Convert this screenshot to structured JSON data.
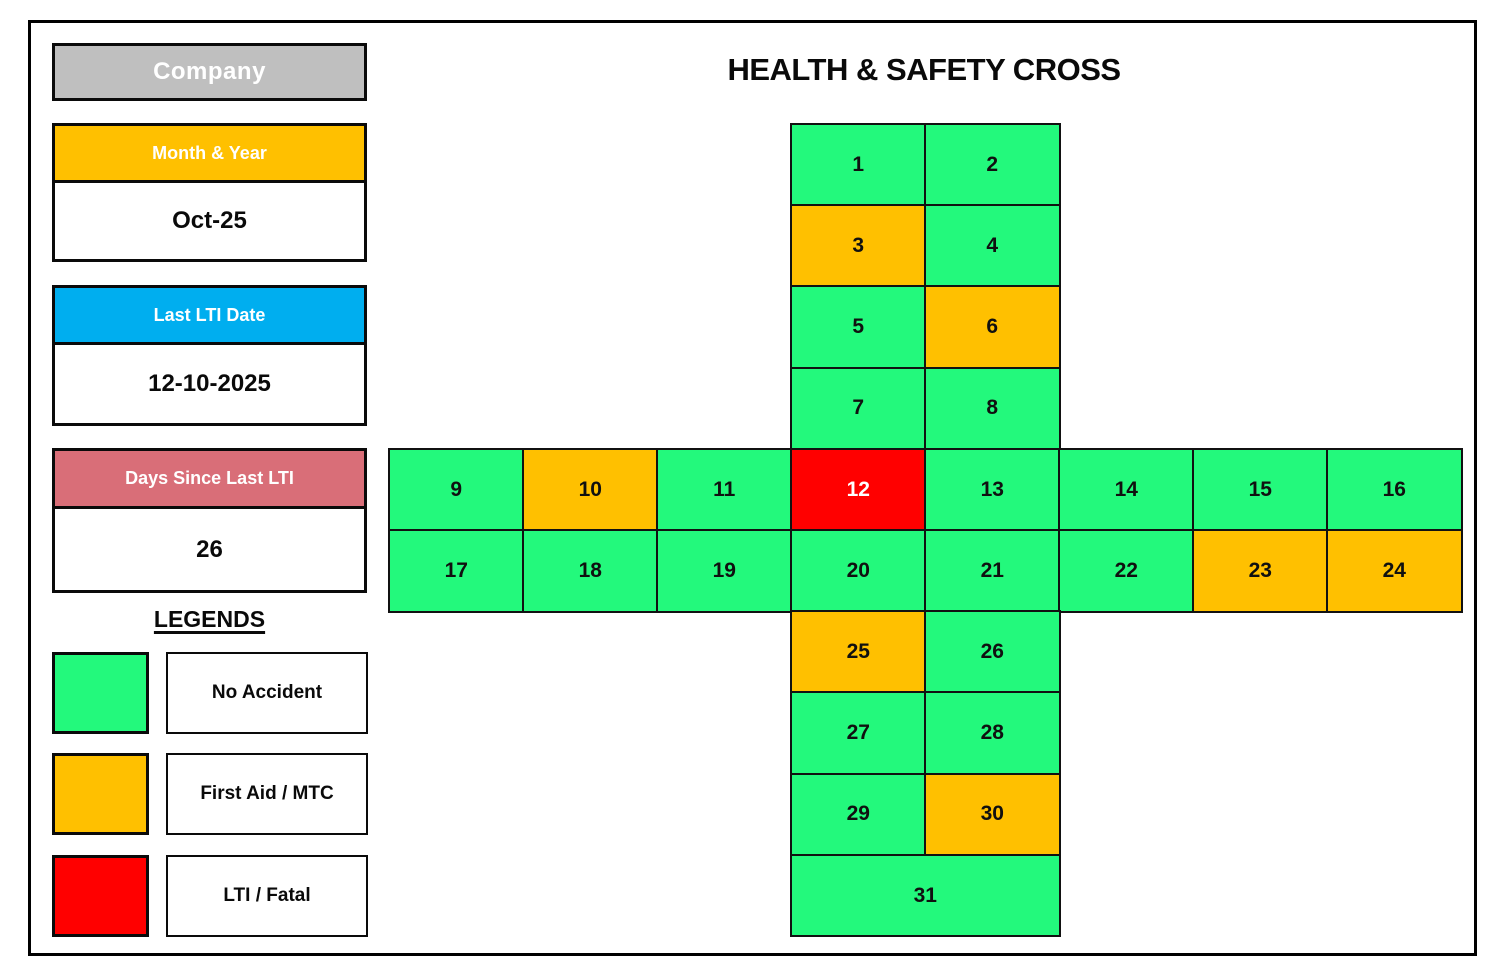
{
  "page": {
    "title": "HEALTH & SAFETY CROSS"
  },
  "company": {
    "label": "Company",
    "bg": "#BFBFBF"
  },
  "info_cards": [
    {
      "id": "month-year",
      "label": "Month & Year",
      "value": "Oct-25",
      "header_bg": "#FFC000"
    },
    {
      "id": "last-lti-date",
      "label": "Last LTI Date",
      "value": "12-10-2025",
      "header_bg": "#00AEEF"
    },
    {
      "id": "days-since-last-lti",
      "label": "Days Since Last LTI",
      "value": "26",
      "header_bg": "#D96E78"
    }
  ],
  "legends": {
    "title": "LEGENDS",
    "items": [
      {
        "status": "no_accident",
        "label": "No Accident",
        "color": "#23F97C"
      },
      {
        "status": "first_aid_mtc",
        "label": "First Aid / MTC",
        "color": "#FFC000"
      },
      {
        "status": "lti_fatal",
        "label": "LTI / Fatal",
        "color": "#FF0000"
      }
    ]
  },
  "chart_data": {
    "type": "heatmap",
    "layout": "safety-cross-calendar",
    "title": "HEALTH & SAFETY CROSS",
    "month_year": "Oct-25",
    "last_lti_date": "12-10-2025",
    "days_since_last_lti": 26,
    "legend_position": "left",
    "status_colors": {
      "no_accident": "#23F97C",
      "first_aid_mtc": "#FFC000",
      "lti_fatal": "#FF0000"
    },
    "days": [
      {
        "day": 1,
        "status": "no_accident"
      },
      {
        "day": 2,
        "status": "no_accident"
      },
      {
        "day": 3,
        "status": "first_aid_mtc"
      },
      {
        "day": 4,
        "status": "no_accident"
      },
      {
        "day": 5,
        "status": "no_accident"
      },
      {
        "day": 6,
        "status": "first_aid_mtc"
      },
      {
        "day": 7,
        "status": "no_accident"
      },
      {
        "day": 8,
        "status": "no_accident"
      },
      {
        "day": 9,
        "status": "no_accident"
      },
      {
        "day": 10,
        "status": "first_aid_mtc"
      },
      {
        "day": 11,
        "status": "no_accident"
      },
      {
        "day": 12,
        "status": "lti_fatal"
      },
      {
        "day": 13,
        "status": "no_accident"
      },
      {
        "day": 14,
        "status": "no_accident"
      },
      {
        "day": 15,
        "status": "no_accident"
      },
      {
        "day": 16,
        "status": "no_accident"
      },
      {
        "day": 17,
        "status": "no_accident"
      },
      {
        "day": 18,
        "status": "no_accident"
      },
      {
        "day": 19,
        "status": "no_accident"
      },
      {
        "day": 20,
        "status": "no_accident"
      },
      {
        "day": 21,
        "status": "no_accident"
      },
      {
        "day": 22,
        "status": "no_accident"
      },
      {
        "day": 23,
        "status": "first_aid_mtc"
      },
      {
        "day": 24,
        "status": "first_aid_mtc"
      },
      {
        "day": 25,
        "status": "first_aid_mtc"
      },
      {
        "day": 26,
        "status": "no_accident"
      },
      {
        "day": 27,
        "status": "no_accident"
      },
      {
        "day": 28,
        "status": "no_accident"
      },
      {
        "day": 29,
        "status": "no_accident"
      },
      {
        "day": 30,
        "status": "first_aid_mtc"
      },
      {
        "day": 31,
        "status": "no_accident"
      }
    ]
  }
}
